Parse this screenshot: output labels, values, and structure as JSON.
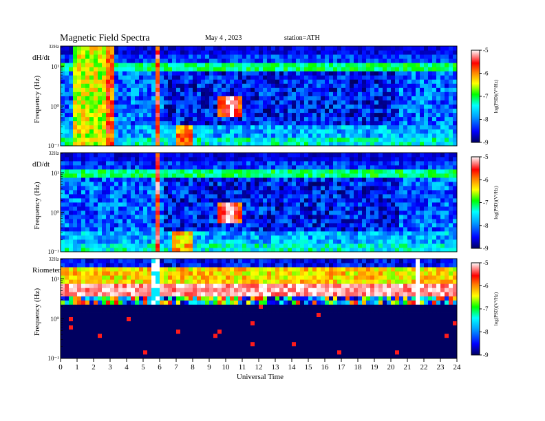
{
  "header": {
    "title": "Magnetic  Field  Spectra",
    "date": "May 4  , 2023",
    "station": "station=ATH"
  },
  "chart_data": {
    "type": "heatmap",
    "xlabel": "Universal Time",
    "x_ticks": [
      "0",
      "1",
      "2",
      "3",
      "4",
      "5",
      "6",
      "7",
      "8",
      "9",
      "10",
      "11",
      "12",
      "13",
      "14",
      "15",
      "16",
      "17",
      "18",
      "19",
      "20",
      "21",
      "22",
      "23",
      "24"
    ],
    "xlim": [
      0,
      24
    ],
    "ylabel": "Frequency  (Hz)",
    "y_ticks": [
      "32Hz",
      "10¹",
      "10⁰",
      "10⁻¹"
    ],
    "y_scale": "log",
    "ylim": [
      0.1,
      32
    ],
    "colorbar": {
      "label": "log(PSD)(V²/Hz)",
      "ticks": [
        "-5",
        "-6",
        "-7",
        "-8",
        "-9"
      ],
      "range": [
        -9,
        -5
      ],
      "colors": [
        "#000060",
        "#0000ff",
        "#00a0ff",
        "#00ffff",
        "#00ff00",
        "#ffff00",
        "#ff8000",
        "#ff0000",
        "#ffffff"
      ]
    },
    "panels": [
      {
        "label": "dH/dt",
        "baseline": -8.1,
        "top_band_value": -8.6,
        "events": [
          {
            "t_start": 0.8,
            "t_end": 3.3,
            "value": -6.5,
            "desc": "broadband activity"
          },
          {
            "t_start": 2.8,
            "t_end": 3.2,
            "value": -5.8,
            "desc": "strong burst"
          },
          {
            "t_start": 5.7,
            "t_end": 6.1,
            "value": -5.6,
            "desc": "strong burst"
          },
          {
            "t_start": 7.0,
            "t_end": 8.0,
            "value": -6.0,
            "desc": "low frequency emission"
          },
          {
            "t_start": 9.4,
            "t_end": 11.2,
            "value": -5.0,
            "desc": "saturated patch near 1 Hz"
          }
        ]
      },
      {
        "label": "dD/dt",
        "baseline": -8.1,
        "top_band_value": -8.6,
        "events": [
          {
            "t_start": 2.9,
            "t_end": 3.1,
            "value": -6.3,
            "desc": "burst"
          },
          {
            "t_start": 5.7,
            "t_end": 6.1,
            "value": -5.5,
            "desc": "strong burst"
          },
          {
            "t_start": 6.8,
            "t_end": 8.0,
            "value": -6.2,
            "desc": "low frequency emission"
          },
          {
            "t_start": 9.3,
            "t_end": 11.1,
            "value": -5.0,
            "desc": "saturated patch near 1 Hz"
          }
        ]
      },
      {
        "label": "Riometer",
        "baseline": -9.0,
        "band_top_value": -8.5,
        "band_high_value": -6.3,
        "band_low_value": -5.2,
        "events": [
          {
            "t_start": 3.9,
            "t_end": 4.1,
            "value": -5.0,
            "desc": "disturbance"
          },
          {
            "t_start": 5.6,
            "t_end": 6.1,
            "value": -5.0,
            "desc": "data gap"
          },
          {
            "t_start": 21.6,
            "t_end": 21.7,
            "value": -5.0,
            "desc": "spike"
          }
        ]
      }
    ]
  }
}
